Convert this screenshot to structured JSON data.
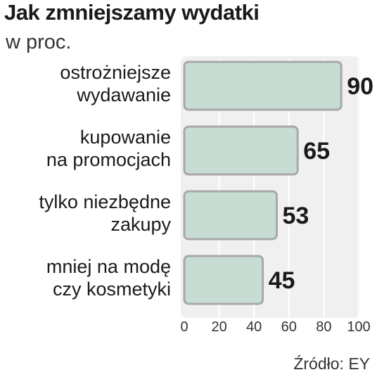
{
  "chart_data": {
    "type": "bar",
    "orientation": "horizontal",
    "title": "Jak zmniejszamy wydatki",
    "subtitle": "w proc.",
    "categories": [
      [
        "ostrożniejsze",
        "wydawanie"
      ],
      [
        "kupowanie",
        "na promocjach"
      ],
      [
        "tylko niezbędne",
        "zakupy"
      ],
      [
        "mniej na modę",
        "czy kosmetyki"
      ]
    ],
    "values": [
      90,
      65,
      53,
      45
    ],
    "xlim": [
      0,
      100
    ],
    "xticks": [
      0,
      20,
      40,
      60,
      80,
      100
    ],
    "grid": "vertical",
    "source": "Źródło: EY"
  },
  "colors": {
    "bar_fill": "#c7dcd2",
    "bar_stroke": "#a8a8a8",
    "plot_background": "#f0f0f0",
    "grid": "#ffffff",
    "text": "#1a1a1a"
  }
}
